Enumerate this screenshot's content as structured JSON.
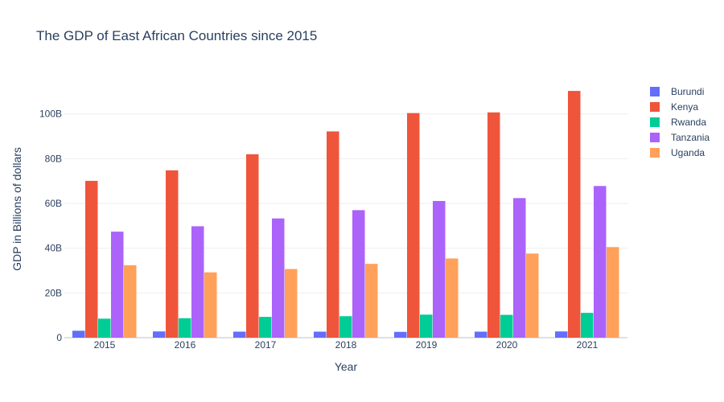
{
  "chart_data": {
    "type": "bar",
    "title": "The GDP of East African Countries since 2015",
    "xlabel": "Year",
    "ylabel": "GDP in Billions of dollars",
    "categories": [
      "2015",
      "2016",
      "2017",
      "2018",
      "2019",
      "2020",
      "2021"
    ],
    "ylim": [
      0,
      115
    ],
    "yticks": [
      0,
      20,
      40,
      60,
      80,
      100
    ],
    "ytick_labels": [
      "0",
      "20B",
      "40B",
      "60B",
      "80B",
      "100B"
    ],
    "legend_position": "top-right",
    "grid": true,
    "series": [
      {
        "name": "Burundi",
        "color": "#636efa",
        "values": [
          3.1,
          2.8,
          2.7,
          2.7,
          2.6,
          2.7,
          2.8
        ]
      },
      {
        "name": "Kenya",
        "color": "#ef553b",
        "values": [
          70.1,
          74.8,
          82.0,
          92.2,
          100.4,
          100.7,
          110.3
        ]
      },
      {
        "name": "Rwanda",
        "color": "#00cc96",
        "values": [
          8.5,
          8.7,
          9.3,
          9.6,
          10.3,
          10.2,
          11.1
        ]
      },
      {
        "name": "Tanzania",
        "color": "#ab63fa",
        "values": [
          47.4,
          49.8,
          53.3,
          57.0,
          61.1,
          62.4,
          67.8
        ]
      },
      {
        "name": "Uganda",
        "color": "#ffa15a",
        "values": [
          32.4,
          29.2,
          30.7,
          33.0,
          35.4,
          37.6,
          40.5
        ]
      }
    ]
  }
}
